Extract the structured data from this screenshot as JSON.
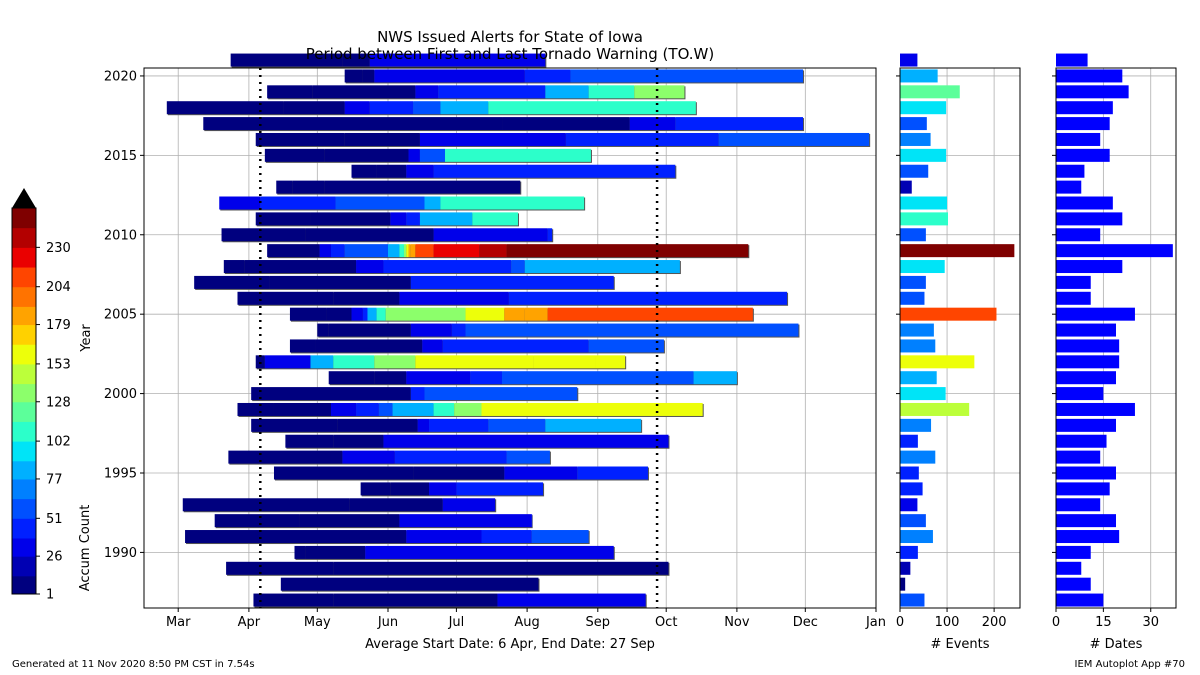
{
  "chart_data": {
    "type": "bar",
    "title": "NWS Issued Alerts for State of Iowa",
    "subtitle": "Period between First and Last Tornado Warning (TO.W)",
    "ylabel": "Year",
    "xlabel": "Average Start Date: 6 Apr, End Date: 27 Sep",
    "xlim_days": [
      45,
      366
    ],
    "ylim": [
      1986.5,
      2020.5
    ],
    "x_tick_labels": [
      "Mar",
      "Apr",
      "May",
      "Jun",
      "Jul",
      "Aug",
      "Sep",
      "Oct",
      "Nov",
      "Dec",
      "Jan"
    ],
    "x_tick_days": [
      60,
      91,
      121,
      152,
      182,
      213,
      244,
      274,
      305,
      335,
      366
    ],
    "y_tick_labels": [
      "1990",
      "1995",
      "2000",
      "2005",
      "2010",
      "2015",
      "2020"
    ],
    "y_tick_values": [
      1990,
      1995,
      2000,
      2005,
      2010,
      2015,
      2020
    ],
    "grid": true,
    "average_start_day": 96,
    "average_end_day": 270,
    "rows": [
      {
        "year": 1987,
        "start_day": 93,
        "end_day": 265,
        "segments": [
          [
            93,
            0
          ],
          [
            128,
            8
          ],
          [
            200,
            26
          ]
        ],
        "events": 52,
        "dates": 15
      },
      {
        "year": 1988,
        "start_day": 105,
        "end_day": 218,
        "segments": [
          [
            105,
            0
          ]
        ],
        "events": 11,
        "dates": 11
      },
      {
        "year": 1989,
        "start_day": 81,
        "end_day": 275,
        "segments": [
          [
            81,
            0
          ],
          [
            128,
            8
          ]
        ],
        "events": 22,
        "dates": 8
      },
      {
        "year": 1990,
        "start_day": 111,
        "end_day": 251,
        "segments": [
          [
            111,
            0
          ],
          [
            116,
            8
          ],
          [
            142,
            26
          ]
        ],
        "events": 38,
        "dates": 11
      },
      {
        "year": 1991,
        "start_day": 63,
        "end_day": 240,
        "segments": [
          [
            63,
            8
          ],
          [
            160,
            26
          ],
          [
            193,
            44
          ],
          [
            215,
            60
          ]
        ],
        "events": 70,
        "dates": 20
      },
      {
        "year": 1992,
        "start_day": 76,
        "end_day": 215,
        "segments": [
          [
            76,
            0
          ],
          [
            113,
            8
          ],
          [
            157,
            26
          ],
          [
            215,
            44
          ]
        ],
        "events": 55,
        "dates": 19
      },
      {
        "year": 1993,
        "start_day": 62,
        "end_day": 199,
        "segments": [
          [
            62,
            0
          ],
          [
            135,
            8
          ],
          [
            176,
            26
          ]
        ],
        "events": 37,
        "dates": 14
      },
      {
        "year": 1994,
        "start_day": 140,
        "end_day": 220,
        "segments": [
          [
            140,
            0
          ],
          [
            153,
            8
          ],
          [
            170,
            26
          ],
          [
            182,
            38
          ]
        ],
        "events": 48,
        "dates": 17
      },
      {
        "year": 1995,
        "start_day": 102,
        "end_day": 266,
        "segments": [
          [
            102,
            0
          ],
          [
            163,
            8
          ],
          [
            203,
            26
          ],
          [
            235,
            44
          ]
        ],
        "events": 40,
        "dates": 19
      },
      {
        "year": 1996,
        "start_day": 82,
        "end_day": 223,
        "segments": [
          [
            82,
            0
          ],
          [
            127,
            8
          ],
          [
            132,
            26
          ],
          [
            155,
            44
          ],
          [
            204,
            60
          ]
        ],
        "events": 75,
        "dates": 14
      },
      {
        "year": 1997,
        "start_day": 107,
        "end_day": 275,
        "segments": [
          [
            107,
            0
          ],
          [
            128,
            8
          ],
          [
            150,
            26
          ]
        ],
        "events": 38,
        "dates": 16
      },
      {
        "year": 1998,
        "start_day": 92,
        "end_day": 263,
        "segments": [
          [
            92,
            0
          ],
          [
            130,
            8
          ],
          [
            165,
            26
          ],
          [
            170,
            44
          ],
          [
            196,
            60
          ],
          [
            221,
            77
          ]
        ],
        "events": 66,
        "dates": 19
      },
      {
        "year": 1999,
        "start_day": 86,
        "end_day": 290,
        "segments": [
          [
            86,
            0
          ],
          [
            102,
            8
          ],
          [
            127,
            26
          ],
          [
            138,
            44
          ],
          [
            148,
            60
          ],
          [
            154,
            77
          ],
          [
            172,
            102
          ],
          [
            181,
            128
          ],
          [
            193,
            153
          ]
        ],
        "events": 147,
        "dates": 25
      },
      {
        "year": 2000,
        "start_day": 92,
        "end_day": 235,
        "segments": [
          [
            92,
            0
          ],
          [
            95,
            8
          ],
          [
            162,
            44
          ],
          [
            168,
            60
          ]
        ],
        "events": 97,
        "dates": 15
      },
      {
        "year": 2001,
        "start_day": 126,
        "end_day": 305,
        "segments": [
          [
            126,
            0
          ],
          [
            146,
            8
          ],
          [
            160,
            26
          ],
          [
            188,
            44
          ],
          [
            202,
            60
          ],
          [
            286,
            77
          ]
        ],
        "events": 78,
        "dates": 19
      },
      {
        "year": 2002,
        "start_day": 94,
        "end_day": 256,
        "segments": [
          [
            94,
            8
          ],
          [
            98,
            26
          ],
          [
            118,
            77
          ],
          [
            128,
            102
          ],
          [
            146,
            128
          ],
          [
            164,
            153
          ],
          [
            216,
            153
          ],
          [
            243,
            153
          ]
        ],
        "events": 158,
        "dates": 20
      },
      {
        "year": 2003,
        "start_day": 109,
        "end_day": 273,
        "segments": [
          [
            109,
            0
          ],
          [
            120,
            8
          ],
          [
            167,
            26
          ],
          [
            176,
            44
          ],
          [
            240,
            60
          ]
        ],
        "events": 75,
        "dates": 20
      },
      {
        "year": 2004,
        "start_day": 121,
        "end_day": 332,
        "segments": [
          [
            121,
            0
          ],
          [
            126,
            8
          ],
          [
            162,
            26
          ],
          [
            180,
            44
          ],
          [
            186,
            60
          ]
        ],
        "events": 72,
        "dates": 19
      },
      {
        "year": 2005,
        "start_day": 109,
        "end_day": 312,
        "segments": [
          [
            109,
            0
          ],
          [
            125,
            8
          ],
          [
            136,
            26
          ],
          [
            141,
            44
          ],
          [
            143,
            77
          ],
          [
            147,
            102
          ],
          [
            151,
            128
          ],
          [
            186,
            153
          ],
          [
            203,
            179
          ],
          [
            212,
            190
          ],
          [
            222,
            204
          ]
        ],
        "events": 205,
        "dates": 25
      },
      {
        "year": 2006,
        "start_day": 86,
        "end_day": 327,
        "segments": [
          [
            86,
            0
          ],
          [
            128,
            8
          ],
          [
            157,
            26
          ],
          [
            205,
            44
          ]
        ],
        "events": 52,
        "dates": 11
      },
      {
        "year": 2007,
        "start_day": 67,
        "end_day": 251,
        "segments": [
          [
            67,
            0
          ],
          [
            100,
            8
          ],
          [
            162,
            44
          ]
        ],
        "events": 55,
        "dates": 11
      },
      {
        "year": 2008,
        "start_day": 80,
        "end_day": 280,
        "segments": [
          [
            80,
            0
          ],
          [
            89,
            8
          ],
          [
            138,
            26
          ],
          [
            150,
            44
          ],
          [
            206,
            60
          ],
          [
            212,
            77
          ]
        ],
        "events": 95,
        "dates": 21
      },
      {
        "year": 2009,
        "start_day": 99,
        "end_day": 310,
        "segments": [
          [
            99,
            8
          ],
          [
            122,
            26
          ],
          [
            127,
            44
          ],
          [
            133,
            60
          ],
          [
            152,
            77
          ],
          [
            157,
            102
          ],
          [
            159,
            128
          ],
          [
            160,
            153
          ],
          [
            161,
            179
          ],
          [
            162,
            190
          ],
          [
            164,
            204
          ],
          [
            172,
            219
          ],
          [
            192,
            230
          ],
          [
            204,
            243
          ]
        ],
        "events": 243,
        "dates": 37
      },
      {
        "year": 2010,
        "start_day": 79,
        "end_day": 224,
        "segments": [
          [
            79,
            0
          ],
          [
            116,
            8
          ],
          [
            172,
            26
          ],
          [
            222,
            44
          ]
        ],
        "events": 55,
        "dates": 14
      },
      {
        "year": 2011,
        "start_day": 94,
        "end_day": 209,
        "segments": [
          [
            94,
            0
          ],
          [
            118,
            8
          ],
          [
            153,
            26
          ],
          [
            160,
            44
          ],
          [
            166,
            77
          ],
          [
            189,
            102
          ]
        ],
        "events": 102,
        "dates": 21
      },
      {
        "year": 2012,
        "start_day": 78,
        "end_day": 238,
        "segments": [
          [
            78,
            26
          ],
          [
            96,
            44
          ],
          [
            129,
            51
          ],
          [
            168,
            77
          ],
          [
            175,
            102
          ]
        ],
        "events": 100,
        "dates": 18
      },
      {
        "year": 2013,
        "start_day": 103,
        "end_day": 210,
        "segments": [
          [
            103,
            0
          ],
          [
            110,
            8
          ],
          [
            124,
            8
          ]
        ],
        "events": 25,
        "dates": 8
      },
      {
        "year": 2014,
        "start_day": 136,
        "end_day": 278,
        "segments": [
          [
            136,
            0
          ],
          [
            147,
            8
          ],
          [
            160,
            26
          ],
          [
            172,
            44
          ]
        ],
        "events": 60,
        "dates": 9
      },
      {
        "year": 2015,
        "start_day": 98,
        "end_day": 241,
        "segments": [
          [
            98,
            0
          ],
          [
            124,
            8
          ],
          [
            161,
            26
          ],
          [
            166,
            51
          ],
          [
            177,
            102
          ]
        ],
        "events": 98,
        "dates": 17
      },
      {
        "year": 2016,
        "start_day": 94,
        "end_day": 363,
        "segments": [
          [
            94,
            0
          ],
          [
            133,
            8
          ],
          [
            166,
            26
          ],
          [
            230,
            44
          ],
          [
            297,
            51
          ]
        ],
        "events": 65,
        "dates": 14
      },
      {
        "year": 2017,
        "start_day": 71,
        "end_day": 334,
        "segments": [
          [
            71,
            0
          ],
          [
            202,
            8
          ],
          [
            258,
            26
          ],
          [
            278,
            44
          ]
        ],
        "events": 57,
        "dates": 17
      },
      {
        "year": 2018,
        "start_day": 55,
        "end_day": 287,
        "segments": [
          [
            55,
            0
          ],
          [
            106,
            8
          ],
          [
            133,
            26
          ],
          [
            144,
            44
          ],
          [
            163,
            60
          ],
          [
            175,
            77
          ],
          [
            196,
            102
          ]
        ],
        "events": 98,
        "dates": 18
      },
      {
        "year": 2019,
        "start_day": 99,
        "end_day": 282,
        "segments": [
          [
            99,
            0
          ],
          [
            119,
            8
          ],
          [
            164,
            26
          ],
          [
            174,
            44
          ],
          [
            221,
            77
          ],
          [
            240,
            102
          ],
          [
            260,
            128
          ]
        ],
        "events": 127,
        "dates": 23
      },
      {
        "year": 2020,
        "start_day": 133,
        "end_day": 334,
        "segments": [
          [
            133,
            0
          ],
          [
            141,
            8
          ],
          [
            146,
            26
          ],
          [
            212,
            44
          ],
          [
            232,
            51
          ]
        ],
        "events": 80,
        "dates": 21
      },
      {
        "year": 2021,
        "start_day": 83,
        "end_day": 221,
        "segments": [
          [
            83,
            0
          ],
          [
            132,
            8
          ],
          [
            144,
            26
          ]
        ],
        "events": 37,
        "dates": 10
      }
    ],
    "events_axis": {
      "label": "# Events",
      "tick_labels": [
        "0",
        "100",
        "200"
      ],
      "tick_values": [
        0,
        100,
        200
      ],
      "xlim": [
        0,
        255
      ]
    },
    "dates_axis": {
      "label": "# Dates",
      "tick_labels": [
        "0",
        "15",
        "30"
      ],
      "tick_values": [
        0,
        15,
        30
      ],
      "xlim": [
        0,
        38
      ]
    },
    "colorbar": {
      "label": "Accum Count",
      "tick_labels": [
        "1",
        "26",
        "51",
        "77",
        "102",
        "128",
        "153",
        "179",
        "204",
        "230"
      ],
      "levels": [
        1,
        13,
        26,
        38,
        51,
        64,
        77,
        89,
        102,
        115,
        128,
        140,
        153,
        166,
        179,
        191,
        204,
        217,
        230,
        243,
        256
      ],
      "colors": [
        "#00007f",
        "#0000b3",
        "#0000ea",
        "#0020ff",
        "#0050ff",
        "#0080ff",
        "#00b0ff",
        "#00e4f7",
        "#2cffca",
        "#5cff9a",
        "#8cff6b",
        "#bcff3a",
        "#edff0a",
        "#ffd100",
        "#ffa300",
        "#ff7300",
        "#ff4500",
        "#ea0000",
        "#b30000",
        "#7f0000"
      ]
    },
    "bar_color": "#0000ff"
  },
  "footer": {
    "left": "Generated at 11 Nov 2020 8:50 PM CST in 7.54s",
    "right": "IEM Autoplot App #70"
  }
}
